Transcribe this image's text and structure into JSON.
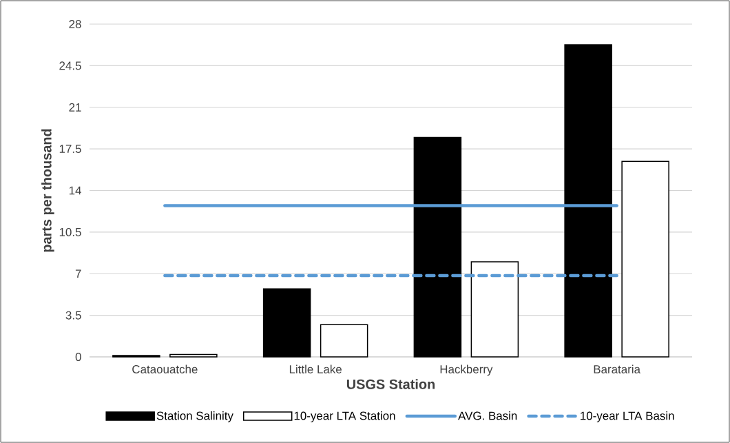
{
  "chart_data": {
    "type": "bar",
    "xlabel": "USGS Station",
    "ylabel": "parts per thousand",
    "categories": [
      "Cataouatche",
      "Little Lake",
      "Hackberry",
      "Barataria"
    ],
    "series": [
      {
        "name": "Station Salinity",
        "color": "#000000",
        "values": [
          0.12,
          5.73,
          18.47,
          26.26
        ]
      },
      {
        "name": "10-year LTA Station",
        "color": "#ffffff",
        "values": [
          0.2,
          2.71,
          8.0,
          16.45
        ]
      },
      {
        "name": "AVG. Basin",
        "type": "line",
        "color": "#5b9bd5",
        "line_style": "solid",
        "values": [
          12.72,
          12.72,
          12.72,
          12.72
        ]
      },
      {
        "name": "10-year LTA Basin",
        "type": "line",
        "color": "#5b9bd5",
        "line_style": "dashed",
        "values": [
          6.84,
          6.84,
          6.84,
          6.84
        ]
      }
    ],
    "ylim": [
      0,
      28
    ],
    "yticks": [
      0,
      3.5,
      7,
      10.5,
      14,
      17.5,
      21,
      24.5,
      28
    ],
    "grid": "y",
    "legend": "bottom",
    "marker": "none"
  }
}
